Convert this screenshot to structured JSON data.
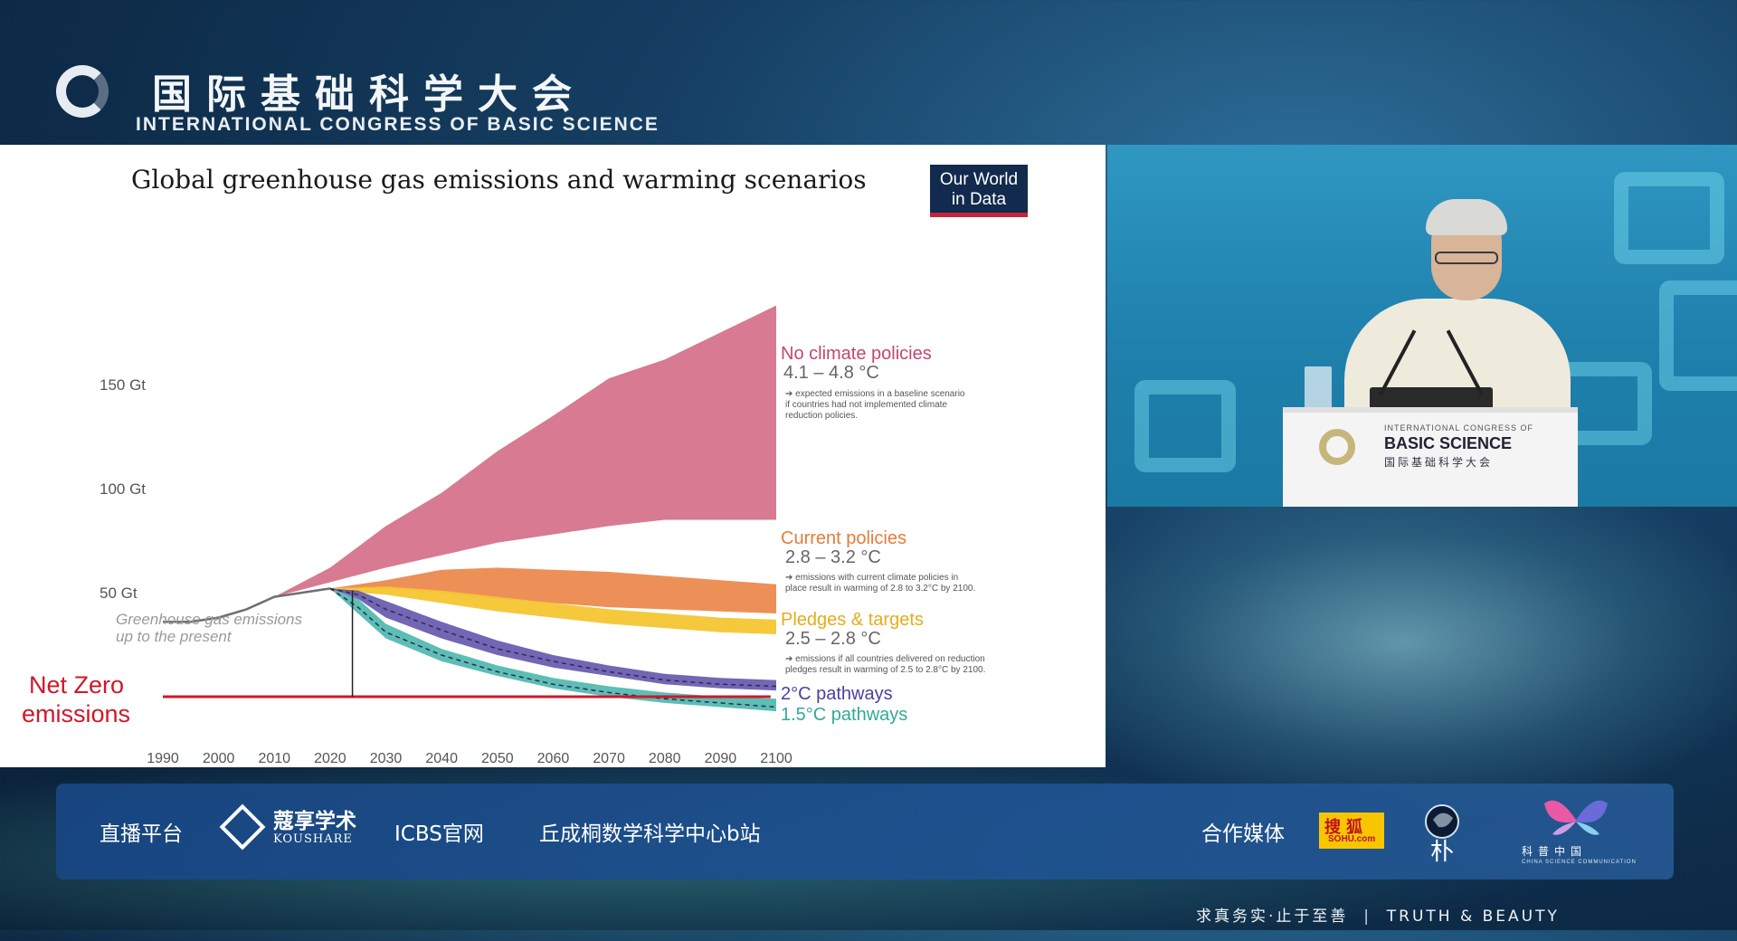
{
  "header": {
    "title_zh": "国际基础科学大会",
    "title_en": "INTERNATIONAL CONGRESS OF BASIC SCIENCE"
  },
  "slide": {
    "title": "Global greenhouse gas emissions and warming scenarios",
    "owid_line1": "Our World",
    "owid_line2": "in Data",
    "net_zero_line1": "Net Zero",
    "net_zero_line2": "emissions",
    "history_line1": "Greenhouse gas emissions",
    "history_line2": "up to the present",
    "scenarios": {
      "no_policy": {
        "name": "No climate policies",
        "range": "4.1 – 4.8 °C",
        "note1": "➔ expected emissions in a baseline scenario",
        "note2": "if countries had not implemented climate",
        "note3": "reduction policies.",
        "color": "#d5738c"
      },
      "current": {
        "name": "Current policies",
        "range": "2.8 – 3.2 °C",
        "note1": "➔ emissions with current climate policies in",
        "note2": "place result in warming of 2.8 to 3.2°C by 2100.",
        "color": "#ec8a4e"
      },
      "pledges": {
        "name": "Pledges & targets",
        "range": "2.5 – 2.8 °C",
        "note1": "➔ emissions if all countries delivered on reduction",
        "note2": "pledges result in warming of 2.5 to 2.8°C by 2100.",
        "color": "#f6c531"
      },
      "two": {
        "name": "2°C pathways",
        "color": "#5a4ba7"
      },
      "onefive": {
        "name": "1.5°C pathways",
        "color": "#3fb3a7"
      }
    }
  },
  "chart_data": {
    "type": "area",
    "title": "Global greenhouse gas emissions and warming scenarios",
    "y_ticks": [
      "150 Gt",
      "100 Gt",
      "50 Gt"
    ],
    "ylim": [
      0,
      180
    ],
    "x": [
      1990,
      2000,
      2010,
      2020,
      2030,
      2040,
      2050,
      2060,
      2070,
      2080,
      2090,
      2100
    ],
    "history": {
      "x": [
        1990,
        1995,
        2000,
        2005,
        2010,
        2015,
        2020
      ],
      "y": [
        36,
        36,
        38,
        42,
        48,
        50,
        52
      ]
    },
    "series": [
      {
        "name": "No climate policies",
        "x": [
          2010,
          2020,
          2030,
          2040,
          2050,
          2060,
          2070,
          2080,
          2090,
          2100
        ],
        "low": [
          48,
          55,
          62,
          68,
          74,
          78,
          82,
          85,
          85,
          85
        ],
        "high": [
          48,
          62,
          82,
          98,
          118,
          135,
          153,
          162,
          175,
          188
        ]
      },
      {
        "name": "Current policies",
        "x": [
          2020,
          2030,
          2040,
          2050,
          2060,
          2070,
          2080,
          2090,
          2100
        ],
        "low": [
          52,
          52,
          50,
          47,
          45,
          43,
          42,
          41,
          40
        ],
        "high": [
          52,
          56,
          61,
          62,
          61,
          60,
          58,
          56,
          54
        ]
      },
      {
        "name": "Pledges & targets",
        "x": [
          2020,
          2030,
          2040,
          2050,
          2060,
          2070,
          2080,
          2090,
          2100
        ],
        "low": [
          51,
          49,
          45,
          41,
          38,
          35,
          33,
          31,
          30
        ],
        "high": [
          52,
          53,
          51,
          48,
          45,
          42,
          40,
          38,
          37
        ]
      },
      {
        "name": "2°C pathways",
        "x": [
          2020,
          2025,
          2030,
          2040,
          2050,
          2060,
          2070,
          2080,
          2090,
          2100
        ],
        "low": [
          52,
          47,
          38,
          28,
          20,
          14,
          10,
          6,
          4,
          3
        ],
        "mid": [
          52,
          49,
          42,
          32,
          23,
          17,
          12,
          8,
          6,
          5
        ],
        "high": [
          52,
          51,
          46,
          36,
          27,
          20,
          15,
          11,
          9,
          8
        ]
      },
      {
        "name": "1.5°C pathways",
        "x": [
          2020,
          2025,
          2030,
          2040,
          2050,
          2060,
          2070,
          2080,
          2090,
          2100
        ],
        "low": [
          52,
          40,
          28,
          17,
          10,
          4,
          0,
          -3,
          -5,
          -7
        ],
        "mid": [
          52,
          43,
          31,
          20,
          12,
          6,
          2,
          -1,
          -3,
          -5
        ],
        "high": [
          52,
          47,
          35,
          23,
          15,
          9,
          5,
          2,
          0,
          -1
        ]
      }
    ],
    "annotations": [
      "Net Zero emissions",
      "Greenhouse gas emissions up to the present"
    ]
  },
  "bottom_bar": {
    "live_label": "直播平台",
    "koushare_zh": "蔻享学术",
    "koushare_en": "KOUSHARE",
    "icbs": "ICBS官网",
    "bilibili": "丘成桐数学科学中心b站",
    "media_label": "合作媒体",
    "sohu_zh": "搜狐",
    "sohu_en": "SOHU.com",
    "pu": "朴",
    "cs_label": "科普中国",
    "cs_sub": "CHINA SCIENCE COMMUNICATION"
  },
  "podium": {
    "line1": "INTERNATIONAL CONGRESS OF",
    "line2": "BASIC SCIENCE",
    "line3": "国际基础科学大会"
  },
  "footer": {
    "motto_zh": "求真务实·止于至善",
    "motto_en": "TRUTH & BEAUTY"
  }
}
